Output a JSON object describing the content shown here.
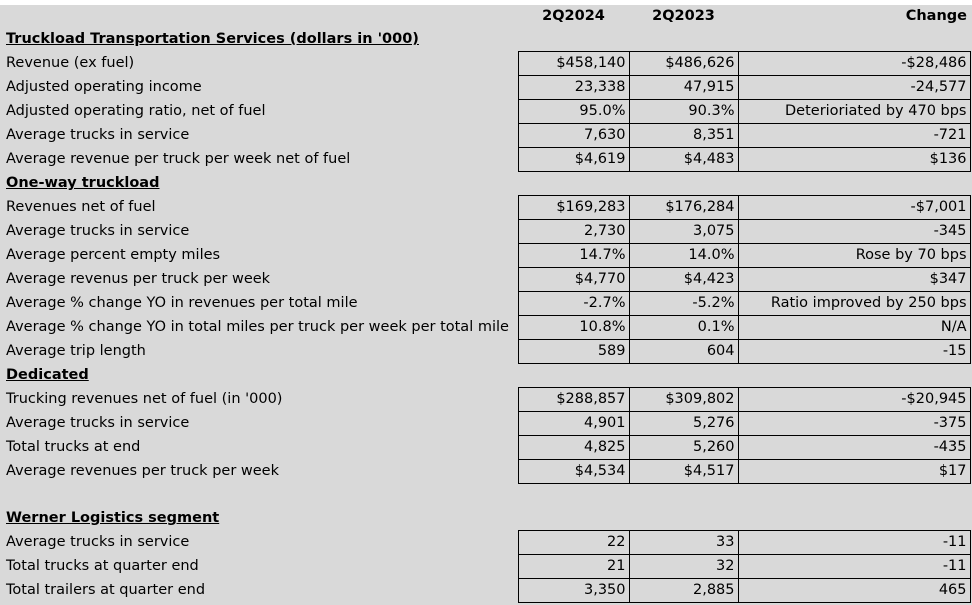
{
  "header": {
    "col_a": "2Q2024",
    "col_b": "2Q2023",
    "col_c": "Change"
  },
  "rows": [
    {
      "type": "section",
      "label": "Truckload Transportation Services (dollars in '000)"
    },
    {
      "type": "data",
      "label": "Revenue (ex fuel)",
      "a": "$458,140",
      "b": "$486,626",
      "c": "-$28,486"
    },
    {
      "type": "data",
      "label": "Adjusted operating income",
      "a": "23,338",
      "b": "47,915",
      "c": "-24,577"
    },
    {
      "type": "data",
      "label": "Adjusted operating ratio, net of fuel",
      "a": "95.0%",
      "b": "90.3%",
      "c": "Deterioriated by 470 bps"
    },
    {
      "type": "data",
      "label": "Average trucks in service",
      "a": "7,630",
      "b": "8,351",
      "c": "-721"
    },
    {
      "type": "data",
      "label": "Average revenue per truck per week net of fuel",
      "a": "$4,619",
      "b": "$4,483",
      "c": "$136"
    },
    {
      "type": "section",
      "label": "One-way truckload"
    },
    {
      "type": "data",
      "label": "Revenues net of fuel",
      "a": "$169,283",
      "b": "$176,284",
      "c": "-$7,001"
    },
    {
      "type": "data",
      "label": "Average trucks in service",
      "a": "2,730",
      "b": "3,075",
      "c": "-345"
    },
    {
      "type": "data",
      "label": "Average percent empty miles",
      "a": "14.7%",
      "b": "14.0%",
      "c": "Rose by 70 bps"
    },
    {
      "type": "data",
      "label": "Average revenus per truck per week",
      "a": "$4,770",
      "b": "$4,423",
      "c": "$347"
    },
    {
      "type": "data",
      "label": "Average % change YO in revenues per total mile",
      "a": "-2.7%",
      "b": "-5.2%",
      "c": "Ratio improved by 250 bps"
    },
    {
      "type": "data",
      "label": "Average % change YO in total miles per truck per week per total mile",
      "a": "10.8%",
      "b": "0.1%",
      "c": "N/A"
    },
    {
      "type": "data",
      "label": "Average trip length",
      "a": "589",
      "b": "604",
      "c": "-15"
    },
    {
      "type": "section",
      "label": "Dedicated"
    },
    {
      "type": "data",
      "label": "Trucking revenues net of fuel (in '000)",
      "a": "$288,857",
      "b": "$309,802",
      "c": "-$20,945"
    },
    {
      "type": "data",
      "label": "Average trucks in service",
      "a": "4,901",
      "b": "5,276",
      "c": "-375"
    },
    {
      "type": "data",
      "label": "Total trucks at end",
      "a": "4,825",
      "b": "5,260",
      "c": "-435"
    },
    {
      "type": "data",
      "label": "Average revenues per truck per week",
      "a": "$4,534",
      "b": "$4,517",
      "c": "$17"
    },
    {
      "type": "blank"
    },
    {
      "type": "section",
      "label": "Werner Logistics segment"
    },
    {
      "type": "data",
      "label": "Average trucks in service",
      "a": "22",
      "b": "33",
      "c": "-11"
    },
    {
      "type": "data",
      "label": "Total trucks at quarter end",
      "a": "21",
      "b": "32",
      "c": "-11"
    },
    {
      "type": "data",
      "label": "Total trailers at quarter end",
      "a": "3,350",
      "b": "2,885",
      "c": "465"
    }
  ]
}
